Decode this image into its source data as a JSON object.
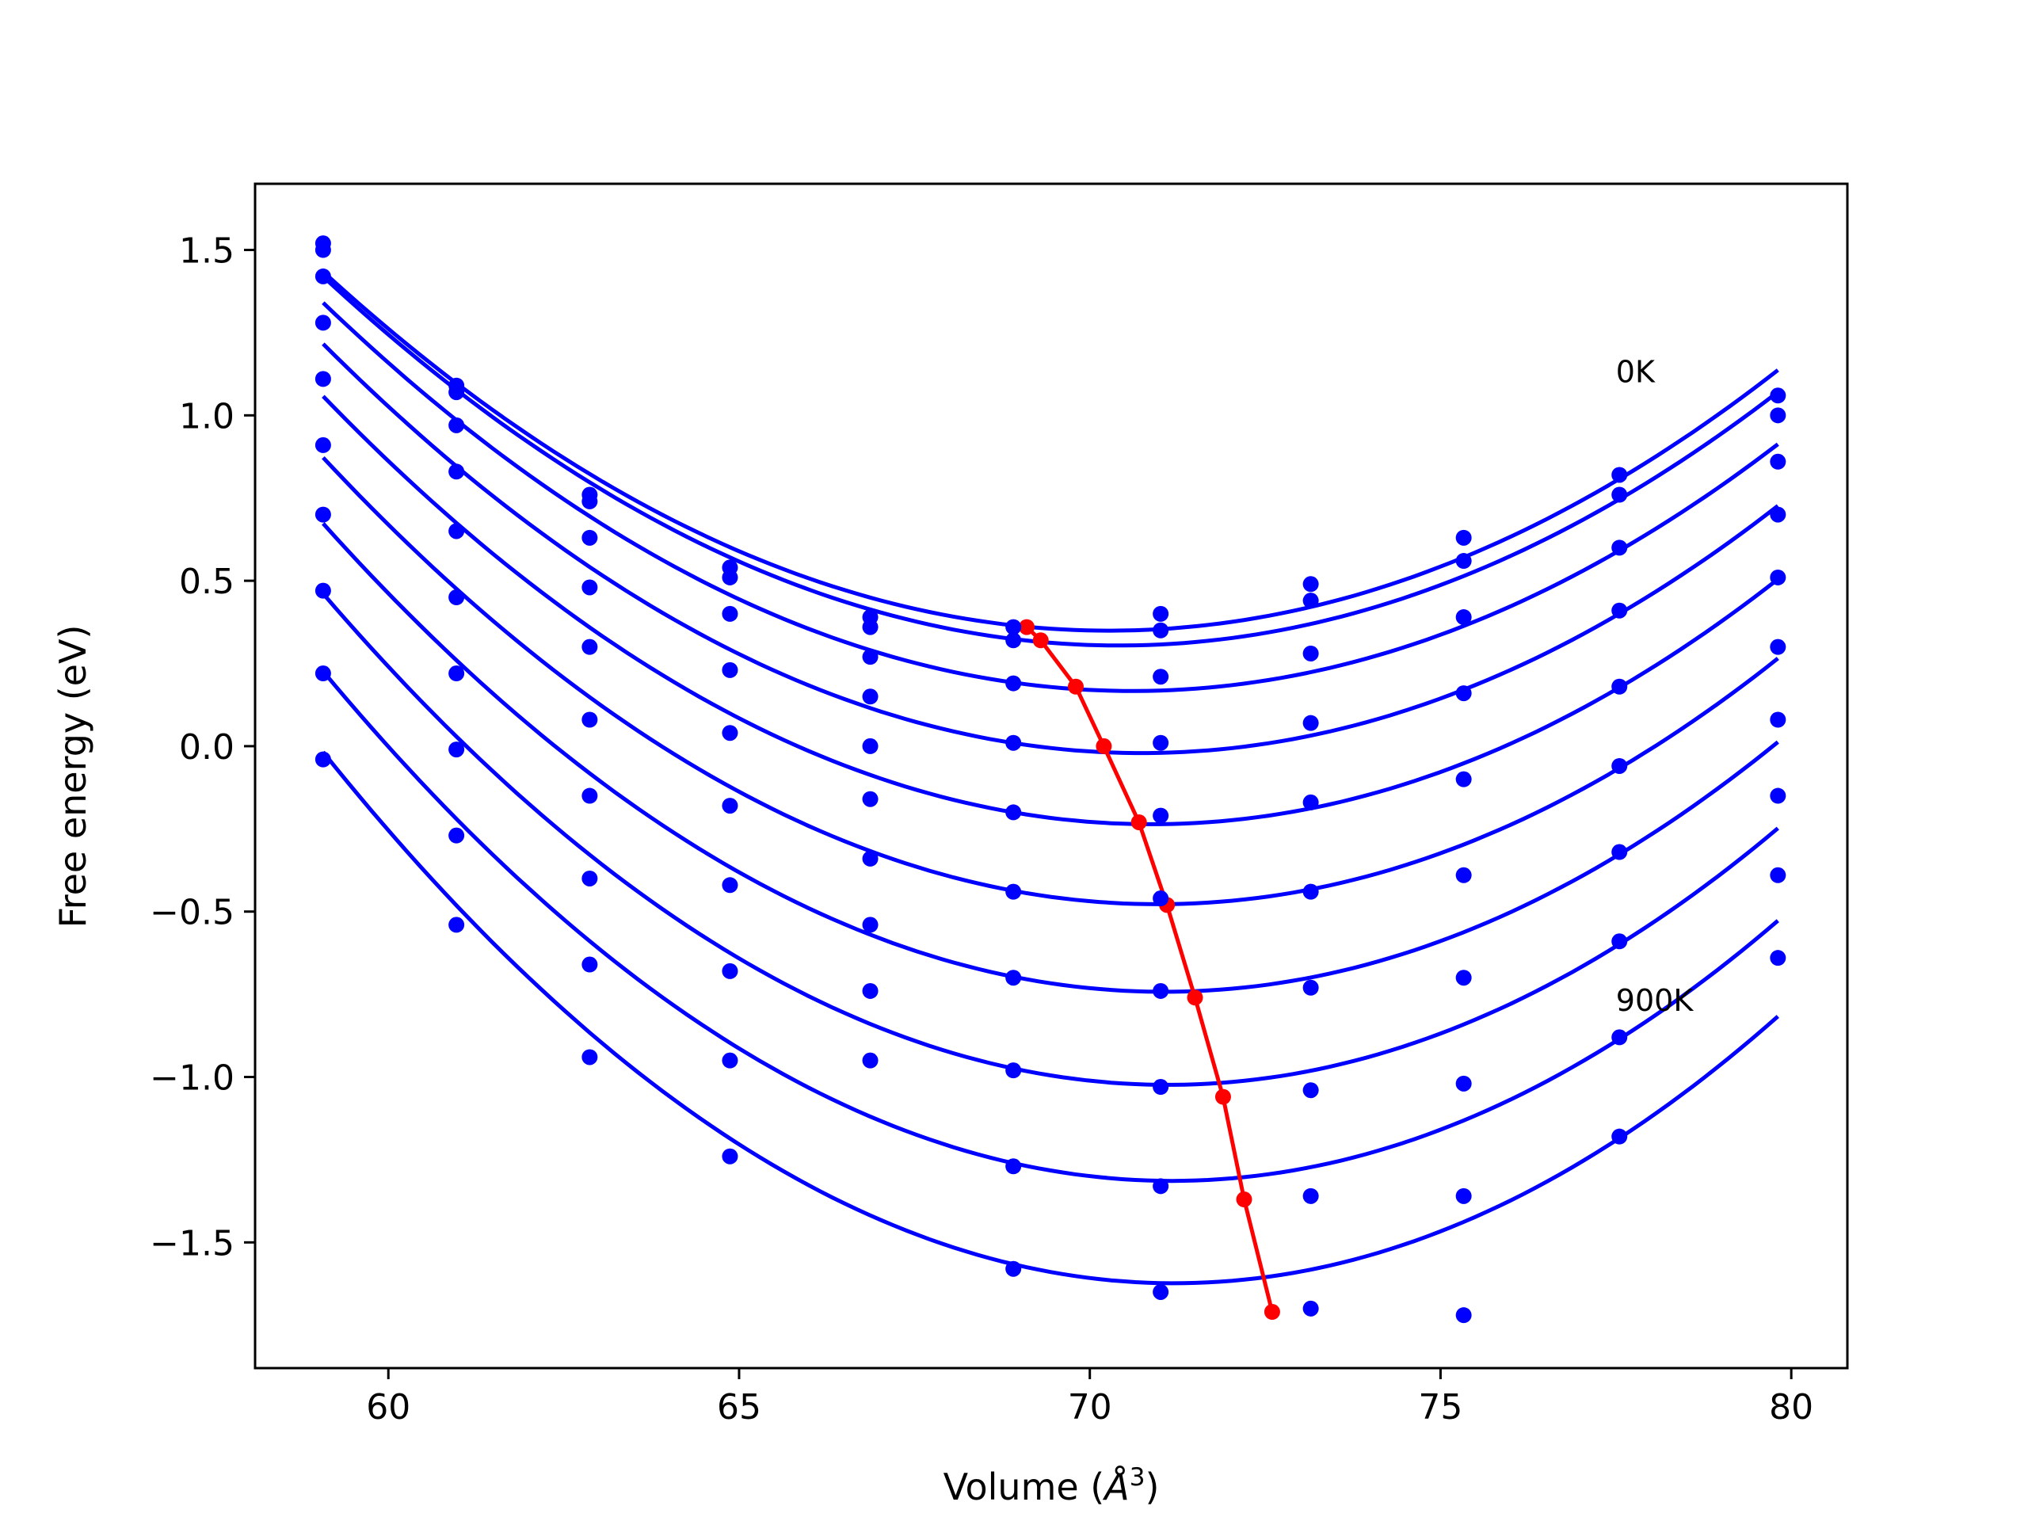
{
  "chart_data": {
    "type": "scatter",
    "title": "",
    "xlabel_prefix": "Volume (",
    "xlabel_symbol": "Å",
    "xlabel_exponent": "3",
    "xlabel_suffix": ")",
    "ylabel": "Free energy (eV)",
    "xlim": [
      58.1,
      80.8
    ],
    "ylim": [
      -1.88,
      1.7
    ],
    "xticks": [
      60,
      65,
      70,
      75,
      80
    ],
    "yticks": [
      -1.5,
      -1.0,
      -0.5,
      0.0,
      0.5,
      1.0,
      1.5
    ],
    "xtick_labels": [
      "60",
      "65",
      "70",
      "75",
      "80"
    ],
    "ytick_labels": [
      "−1.5",
      "−1.0",
      "−0.5",
      "0.0",
      "0.5",
      "1.0",
      "1.5"
    ],
    "annotations": [
      {
        "text": "0K",
        "x": 77.5,
        "y": 1.1
      },
      {
        "text": "900K",
        "x": 77.5,
        "y": -0.8
      }
    ],
    "point_color": "#0000ff",
    "fit_color": "#0000ff",
    "min_color": "#ff0000",
    "x": [
      59.07,
      60.97,
      62.87,
      64.87,
      66.87,
      68.91,
      71.01,
      73.15,
      75.33,
      77.55,
      79.81
    ],
    "series": [
      {
        "values": [
          1.52,
          1.09,
          0.76,
          0.54,
          0.39,
          0.36,
          0.4,
          0.49,
          0.63,
          0.82,
          1.06
        ],
        "fit_min": [
          69.1,
          0.36
        ]
      },
      {
        "values": [
          1.5,
          1.07,
          0.74,
          0.51,
          0.36,
          0.32,
          0.35,
          0.44,
          0.56,
          0.76,
          1.0
        ],
        "fit_min": [
          69.3,
          0.32
        ]
      },
      {
        "values": [
          1.42,
          0.97,
          0.63,
          0.4,
          0.27,
          0.19,
          0.21,
          0.28,
          0.39,
          0.6,
          0.86
        ],
        "fit_min": [
          69.8,
          0.18
        ]
      },
      {
        "values": [
          1.28,
          0.83,
          0.48,
          0.23,
          0.15,
          0.01,
          0.01,
          0.07,
          0.16,
          0.41,
          0.7
        ],
        "fit_min": [
          70.2,
          0.0
        ]
      },
      {
        "values": [
          1.11,
          0.65,
          0.3,
          0.04,
          0.0,
          -0.2,
          -0.21,
          -0.17,
          -0.1,
          0.18,
          0.51
        ],
        "fit_min": [
          70.7,
          -0.23
        ]
      },
      {
        "values": [
          0.91,
          0.45,
          0.08,
          -0.18,
          -0.16,
          -0.44,
          -0.46,
          -0.44,
          -0.39,
          -0.06,
          0.3
        ],
        "fit_min": [
          71.1,
          -0.48
        ]
      },
      {
        "values": [
          0.7,
          0.22,
          -0.15,
          -0.42,
          -0.34,
          -0.7,
          -0.74,
          -0.73,
          -0.7,
          -0.32,
          0.08
        ],
        "fit_min": [
          71.5,
          -0.76
        ]
      },
      {
        "values": [
          0.47,
          -0.01,
          -0.4,
          -0.68,
          -0.54,
          -0.98,
          -1.03,
          -1.04,
          -1.02,
          -0.59,
          -0.15
        ],
        "fit_min": [
          71.9,
          -1.06
        ]
      },
      {
        "values": [
          0.22,
          -0.27,
          -0.66,
          -0.95,
          -0.74,
          -1.27,
          -1.33,
          -1.36,
          -1.36,
          -0.88,
          -0.39
        ],
        "fit_min": [
          72.2,
          -1.37
        ]
      },
      {
        "values": [
          -0.04,
          -0.54,
          -0.94,
          -1.24,
          -0.95,
          -1.58,
          -1.65,
          -1.7,
          -1.72,
          -1.18,
          -0.64
        ],
        "fit_min": [
          72.6,
          -1.71
        ]
      }
    ]
  }
}
